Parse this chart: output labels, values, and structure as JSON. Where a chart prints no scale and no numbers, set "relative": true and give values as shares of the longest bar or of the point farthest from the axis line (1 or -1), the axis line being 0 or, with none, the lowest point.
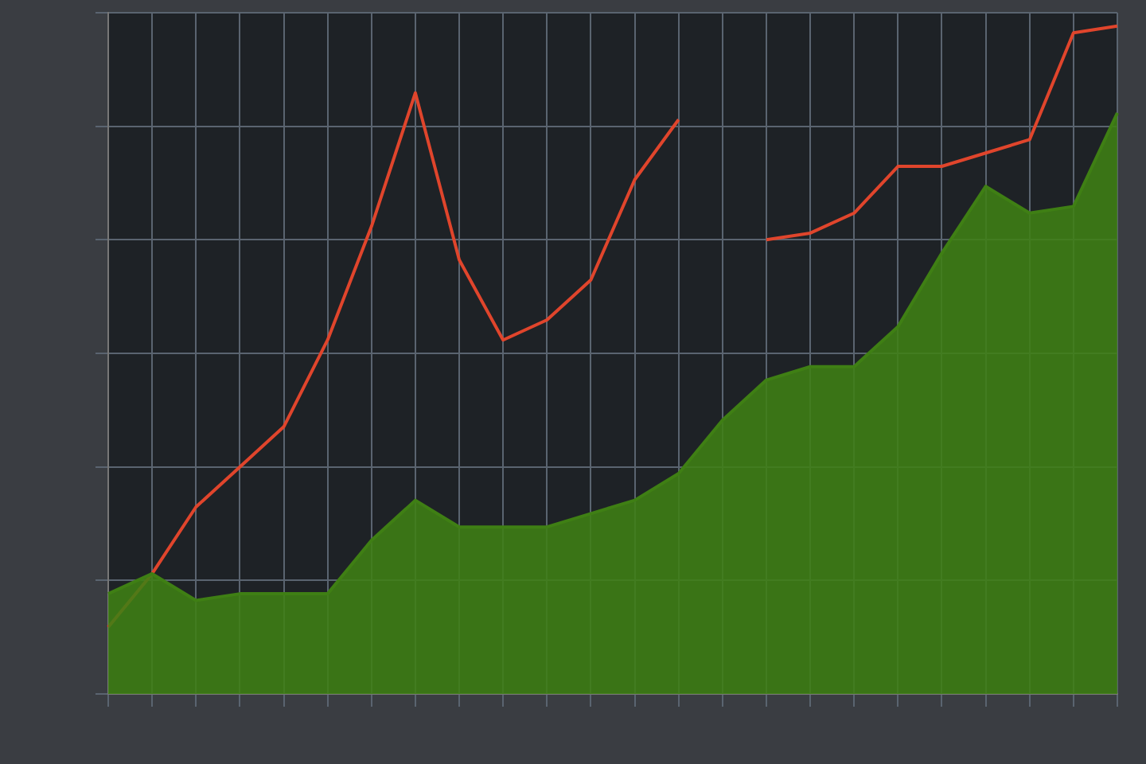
{
  "chart_data": {
    "type": "line",
    "relative": true,
    "grid": true,
    "tick_labels": false,
    "legend": false,
    "categories": [
      null,
      null,
      null,
      null,
      null,
      null,
      null,
      null,
      null,
      null,
      null,
      null,
      null,
      null,
      null,
      null,
      null,
      null,
      null,
      null,
      null,
      null,
      null,
      null
    ],
    "series": [
      {
        "type": "area",
        "color": "#3f7f14",
        "values": [
          0.15,
          0.18,
          0.14,
          0.15,
          0.15,
          0.15,
          0.23,
          0.29,
          0.25,
          0.25,
          0.25,
          0.27,
          0.29,
          0.33,
          0.41,
          0.47,
          0.49,
          0.49,
          0.55,
          0.66,
          0.76,
          0.72,
          0.73,
          0.87
        ]
      },
      {
        "color": "#e0452c",
        "values": [
          0.1,
          0.18,
          0.28,
          0.34,
          0.4,
          0.53,
          0.7,
          0.9,
          0.65,
          0.53,
          0.56,
          0.62,
          0.77,
          0.86,
          null,
          0.68,
          0.69,
          0.72,
          0.79,
          0.79,
          0.81,
          0.83,
          0.99,
          1.0
        ]
      }
    ]
  }
}
